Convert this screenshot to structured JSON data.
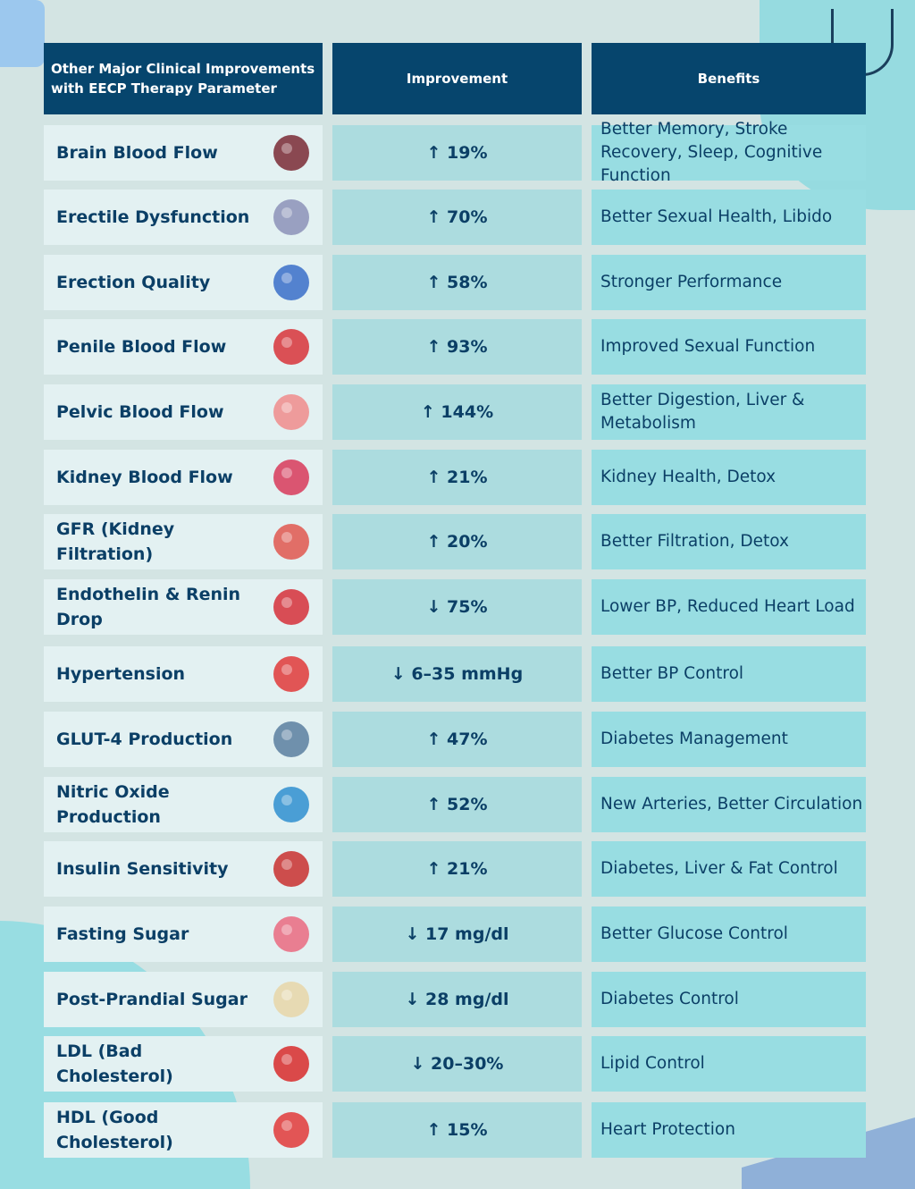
{
  "header": {
    "parameter": "Other Major Clinical Improvements with EECP Therapy Parameter",
    "improvement": "Improvement",
    "benefits": "Benefits"
  },
  "rows": [
    {
      "parameter": "Brain Blood Flow",
      "improvement": "↑ 19%",
      "benefits": "Better Memory, Stroke Recovery, Sleep, Cognitive Function",
      "icon": "brain-icon",
      "color": "#7a2a35"
    },
    {
      "parameter": "Erectile Dysfunction",
      "improvement": "↑ 70%",
      "benefits": "Better Sexual Health, Libido",
      "icon": "prostate-icon",
      "color": "#8c92b8"
    },
    {
      "parameter": "Erection Quality",
      "improvement": "↑ 58%",
      "benefits": "Stronger Performance",
      "icon": "male-reproductive-icon",
      "color": "#3a6ec9"
    },
    {
      "parameter": "Penile Blood Flow",
      "improvement": "↑ 93%",
      "benefits": "Improved Sexual Function",
      "icon": "heart-icon",
      "color": "#d8343a"
    },
    {
      "parameter": "Pelvic Blood Flow",
      "improvement": "↑ 144%",
      "benefits": "Better Digestion, Liver & Metabolism",
      "icon": "bladder-icon",
      "color": "#f08c8c"
    },
    {
      "parameter": "Kidney Blood Flow",
      "improvement": "↑ 21%",
      "benefits": "Kidney Health, Detox",
      "icon": "kidney-icon",
      "color": "#d83a5a"
    },
    {
      "parameter": "GFR (Kidney Filtration)",
      "improvement": "↑ 20%",
      "benefits": "Better Filtration, Detox",
      "icon": "kidneys-icon",
      "color": "#e0574f"
    },
    {
      "parameter": "Endothelin & Renin Drop",
      "improvement": "↓ 75%",
      "benefits": "Lower BP, Reduced Heart Load",
      "icon": "cell-icon",
      "color": "#d6303a"
    },
    {
      "parameter": "Hypertension",
      "improvement": "↓ 6–35 mmHg",
      "benefits": "Better BP Control",
      "icon": "heart-character-icon",
      "color": "#e03a3a"
    },
    {
      "parameter": "GLUT-4 Production",
      "improvement": "↑ 47%",
      "benefits": "Diabetes Management",
      "icon": "researcher-icon",
      "color": "#5a7fa0"
    },
    {
      "parameter": "Nitric Oxide Production",
      "improvement": "↑ 52%",
      "benefits": "New Arteries, Better Circulation",
      "icon": "gas-cylinder-icon",
      "color": "#2f8fd0"
    },
    {
      "parameter": "Insulin Sensitivity",
      "improvement": "↑ 21%",
      "benefits": "Diabetes, Liver & Fat Control",
      "icon": "blood-drop-shield-icon",
      "color": "#c9302f"
    },
    {
      "parameter": "Fasting Sugar",
      "improvement": "↓ 17 mg/dl",
      "benefits": "Better Glucose Control",
      "icon": "glucose-drop-icon",
      "color": "#ea6a80"
    },
    {
      "parameter": "Post-Prandial Sugar",
      "improvement": "↓ 28 mg/dl",
      "benefits": "Diabetes Control",
      "icon": "sugar-cubes-icon",
      "color": "#e8d6a8"
    },
    {
      "parameter": "LDL (Bad Cholesterol)",
      "improvement": "↓ 20–30%",
      "benefits": "Lipid Control",
      "icon": "heart-artery-icon",
      "color": "#d82b2b"
    },
    {
      "parameter": "HDL (Good Cholesterol)",
      "improvement": "↑ 15%",
      "benefits": "Heart Protection",
      "icon": "artery-icon",
      "color": "#e23a3a"
    }
  ]
}
